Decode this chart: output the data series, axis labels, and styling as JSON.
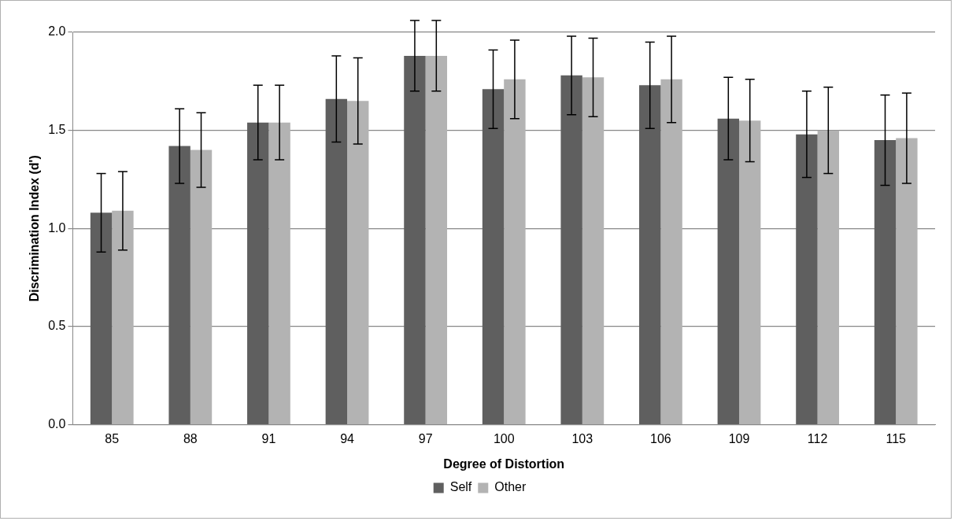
{
  "chart_data": {
    "type": "bar",
    "xlabel": "Degree of Distortion",
    "ylabel": "Discrimination Index (d')",
    "categories": [
      "85",
      "88",
      "91",
      "94",
      "97",
      "100",
      "103",
      "106",
      "109",
      "112",
      "115"
    ],
    "series": [
      {
        "name": "Self",
        "color": "#5f5f5f",
        "values": [
          1.08,
          1.42,
          1.54,
          1.66,
          1.88,
          1.71,
          1.78,
          1.73,
          1.56,
          1.48,
          1.45
        ],
        "errors": [
          0.2,
          0.19,
          0.19,
          0.22,
          0.18,
          0.2,
          0.2,
          0.22,
          0.21,
          0.22,
          0.23
        ]
      },
      {
        "name": "Other",
        "color": "#b3b3b3",
        "values": [
          1.09,
          1.4,
          1.54,
          1.65,
          1.88,
          1.76,
          1.77,
          1.76,
          1.55,
          1.5,
          1.46
        ],
        "errors": [
          0.2,
          0.19,
          0.19,
          0.22,
          0.18,
          0.2,
          0.2,
          0.22,
          0.21,
          0.22,
          0.23
        ]
      }
    ],
    "ylim": [
      0,
      2
    ],
    "yticks": [
      {
        "value": 0,
        "label": "0.0"
      },
      {
        "value": 0.5,
        "label": "0.5"
      },
      {
        "value": 1,
        "label": "1.0"
      },
      {
        "value": 1.5,
        "label": "1.5"
      },
      {
        "value": 2,
        "label": "2.0"
      }
    ],
    "grid": "y",
    "legend": "bottom"
  }
}
